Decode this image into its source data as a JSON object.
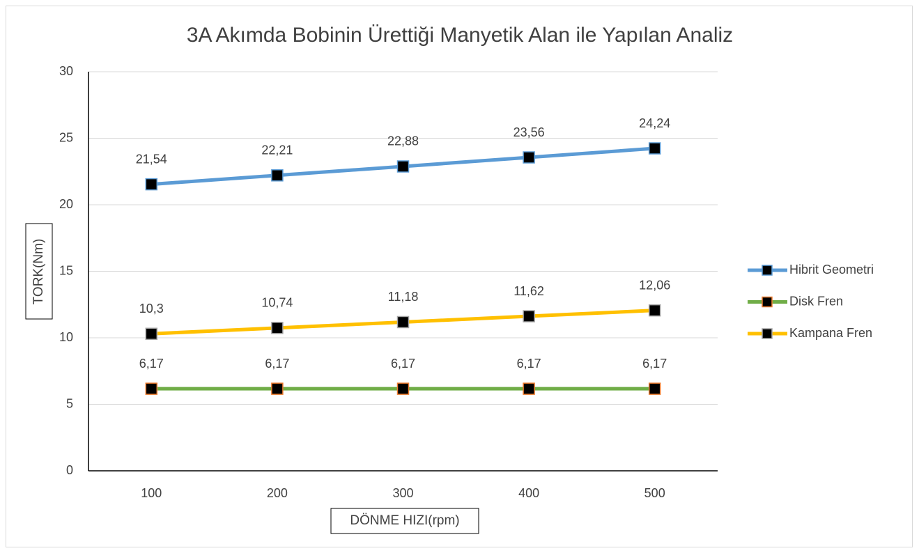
{
  "chart_data": {
    "type": "line",
    "title": "3A Akımda Bobinin Ürettiği Manyetik Alan ile Yapılan Analiz",
    "x_label": "DÖNME HIZI(rpm)",
    "y_label": "TORK(Nm)",
    "categories": [
      "100",
      "200",
      "300",
      "400",
      "500"
    ],
    "series": [
      {
        "name": "Hibrit Geometri",
        "color": "#5b9bd5",
        "marker_color": "#000000",
        "marker_edge_color": "#5b9bd5",
        "values": [
          21.54,
          22.21,
          22.88,
          23.56,
          24.24
        ],
        "value_labels": [
          "21,54",
          "22,21",
          "22,88",
          "23,56",
          "24,24"
        ]
      },
      {
        "name": "Disk Fren",
        "color": "#70ad47",
        "marker_color": "#000000",
        "marker_edge_color": "#ed7d31",
        "values": [
          6.17,
          6.17,
          6.17,
          6.17,
          6.17
        ],
        "value_labels": [
          "6,17",
          "6,17",
          "6,17",
          "6,17",
          "6,17"
        ]
      },
      {
        "name": "Kampana Fren",
        "color": "#ffc000",
        "marker_color": "#000000",
        "marker_edge_color": "#a5a5a5",
        "values": [
          10.3,
          10.74,
          11.18,
          11.62,
          12.06
        ],
        "value_labels": [
          "10,3",
          "10,74",
          "11,18",
          "11,62",
          "12,06"
        ]
      }
    ],
    "ylim": [
      0,
      30
    ],
    "yticks": [
      0,
      5,
      10,
      15,
      20,
      25,
      30
    ],
    "grid": true,
    "legend": "right"
  }
}
